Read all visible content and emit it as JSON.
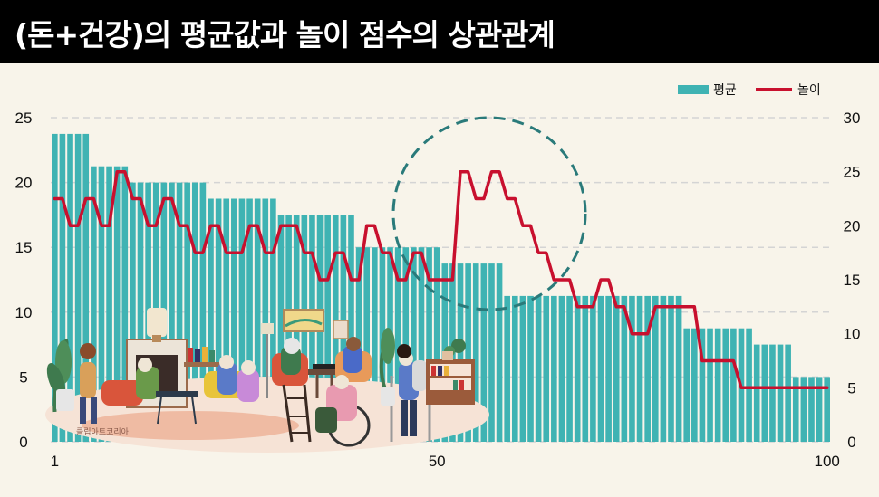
{
  "title": "(돈+건강)의 평균값과 놀이 점수의 상관관계",
  "image_credit": "클립아트코리아",
  "colors": {
    "bar": "#3fb3b3",
    "line": "#c8102e",
    "grid": "#d4d4d4",
    "highlight_circle": "#2a7a7a"
  },
  "chart_data": {
    "type": "bar",
    "x_ticks": [
      "1",
      "50",
      "100"
    ],
    "xlim": [
      1,
      100
    ],
    "legend": {
      "position": "top-right",
      "items": [
        "평균",
        "놀이"
      ]
    },
    "left_axis": {
      "ylim": [
        0,
        25
      ],
      "ticks": [
        "0",
        "5",
        "10",
        "15",
        "20",
        "25"
      ]
    },
    "right_axis": {
      "ylim": [
        0,
        30
      ],
      "ticks": [
        "0",
        "5",
        "10",
        "15",
        "20",
        "25",
        "30"
      ]
    },
    "series": [
      {
        "name": "평균",
        "type": "bar",
        "axis": "left",
        "values": [
          23.75,
          23.75,
          23.75,
          23.75,
          23.75,
          21.25,
          21.25,
          21.25,
          21.25,
          21.25,
          20,
          20,
          20,
          20,
          20,
          20,
          20,
          20,
          20,
          20,
          18.75,
          18.75,
          18.75,
          18.75,
          18.75,
          18.75,
          18.75,
          18.75,
          18.75,
          17.5,
          17.5,
          17.5,
          17.5,
          17.5,
          17.5,
          17.5,
          17.5,
          17.5,
          17.5,
          15,
          15,
          15,
          15,
          15,
          15,
          15,
          15,
          15,
          15,
          15,
          13.75,
          13.75,
          13.75,
          13.75,
          13.75,
          13.75,
          13.75,
          13.75,
          11.25,
          11.25,
          11.25,
          11.25,
          11.25,
          11.25,
          11.25,
          11.25,
          11.25,
          11.25,
          11.25,
          11.25,
          11.25,
          11.25,
          11.25,
          11.25,
          11.25,
          11.25,
          11.25,
          11.25,
          11.25,
          11.25,
          11.25,
          8.75,
          8.75,
          8.75,
          8.75,
          8.75,
          8.75,
          8.75,
          8.75,
          8.75,
          7.5,
          7.5,
          7.5,
          7.5,
          7.5,
          5,
          5,
          5,
          5,
          5
        ]
      },
      {
        "name": "놀이",
        "type": "line",
        "axis": "right",
        "values": [
          22.5,
          22.5,
          20,
          20,
          22.5,
          22.5,
          20,
          20,
          25,
          25,
          22.5,
          22.5,
          20,
          20,
          22.5,
          22.5,
          20,
          20,
          17.5,
          17.5,
          20,
          20,
          17.5,
          17.5,
          17.5,
          20,
          20,
          17.5,
          17.5,
          20,
          20,
          20,
          17.5,
          17.5,
          15,
          15,
          17.5,
          17.5,
          15,
          15,
          20,
          20,
          17.5,
          17.5,
          15,
          15,
          17.5,
          17.5,
          15,
          15,
          15,
          15,
          25,
          25,
          22.5,
          22.5,
          25,
          25,
          22.5,
          22.5,
          20,
          20,
          17.5,
          17.5,
          15,
          15,
          15,
          12.5,
          12.5,
          12.5,
          15,
          15,
          12.5,
          12.5,
          10,
          10,
          10,
          12.5,
          12.5,
          12.5,
          12.5,
          12.5,
          12.5,
          7.5,
          7.5,
          7.5,
          7.5,
          7.5,
          5,
          5,
          5,
          5,
          5,
          5,
          5,
          5,
          5,
          5,
          5,
          5
        ]
      }
    ]
  }
}
